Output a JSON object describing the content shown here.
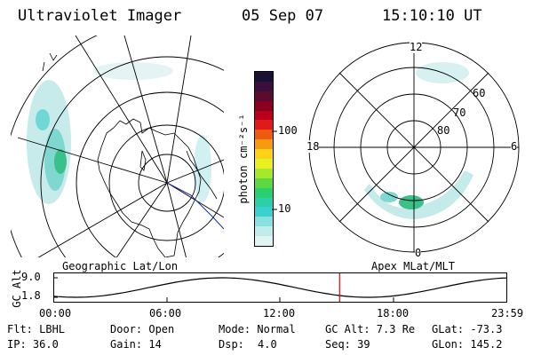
{
  "header": {
    "instrument": "Ultraviolet Imager",
    "date": "05 Sep 07",
    "time": "15:10:10 UT"
  },
  "colorbar": {
    "unit_label": "photon cm⁻²s⁻¹",
    "ticks": [
      "100",
      "10"
    ],
    "colors": [
      "#1a1033",
      "#3a0f3d",
      "#5c0a2e",
      "#8a0020",
      "#b8001a",
      "#e01a1a",
      "#f05a10",
      "#f89a10",
      "#ffd21a",
      "#e8f020",
      "#a8e82a",
      "#5cd840",
      "#2ad070",
      "#2ad0a8",
      "#3ad0d0",
      "#8ae0e0",
      "#c0ecec",
      "#e0f4f4"
    ]
  },
  "left_map": {
    "label": "Geographic Lat/Lon"
  },
  "right_map": {
    "label": "Apex MLat/MLT",
    "mlt_labels": {
      "top": "12",
      "left": "18",
      "right": "6",
      "bottom": "0"
    },
    "lat_labels": [
      "60",
      "70",
      "80"
    ]
  },
  "altitude_plot": {
    "ylabel": "GC Alt",
    "yticks": [
      "9.0",
      "1.8"
    ],
    "xticks": [
      "00:00",
      "06:00",
      "12:00",
      "18:00",
      "23:59"
    ],
    "current_time_marker": "15:10",
    "marker_color": "#e00000"
  },
  "status": {
    "flt": "Flt: LBHL",
    "door": "Door: Open",
    "mode": "Mode: Normal",
    "gc_alt": "GC Alt: 7.3 Re",
    "glat": "GLat: -73.3",
    "ip": "IP: 36.0",
    "gain": "Gain: 14",
    "dsp_label": "Dsp:",
    "dsp_value": "4.0",
    "seq": "Seq: 39",
    "glon": "GLon: 145.2"
  }
}
